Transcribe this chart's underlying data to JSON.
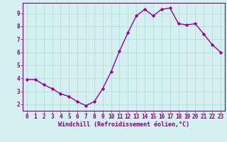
{
  "x": [
    0,
    1,
    2,
    3,
    4,
    5,
    6,
    7,
    8,
    9,
    10,
    11,
    12,
    13,
    14,
    15,
    16,
    17,
    18,
    19,
    20,
    21,
    22,
    23
  ],
  "y": [
    3.9,
    3.9,
    3.5,
    3.2,
    2.8,
    2.6,
    2.2,
    1.9,
    2.2,
    3.2,
    4.5,
    6.1,
    7.5,
    8.8,
    9.3,
    8.8,
    9.3,
    9.4,
    8.2,
    8.1,
    8.2,
    7.4,
    6.6,
    6.0
  ],
  "line_color": "#990099",
  "marker": "D",
  "marker_size": 2.2,
  "line_width": 1.0,
  "bg_color": "#d4f0f0",
  "grid_color": "#b0d8d8",
  "tick_color": "#800080",
  "label_color": "#800080",
  "xlabel": "Windchill (Refroidissement éolien,°C)",
  "xlabel_fontsize": 6.0,
  "ylabel_ticks": [
    2,
    3,
    4,
    5,
    6,
    7,
    8,
    9
  ],
  "xlabel_ticks": [
    0,
    1,
    2,
    3,
    4,
    5,
    6,
    7,
    8,
    9,
    10,
    11,
    12,
    13,
    14,
    15,
    16,
    17,
    18,
    19,
    20,
    21,
    22,
    23
  ],
  "xlim": [
    -0.5,
    23.5
  ],
  "ylim": [
    1.5,
    9.8
  ],
  "tick_fontsize": 5.5,
  "spine_color": "#800080"
}
